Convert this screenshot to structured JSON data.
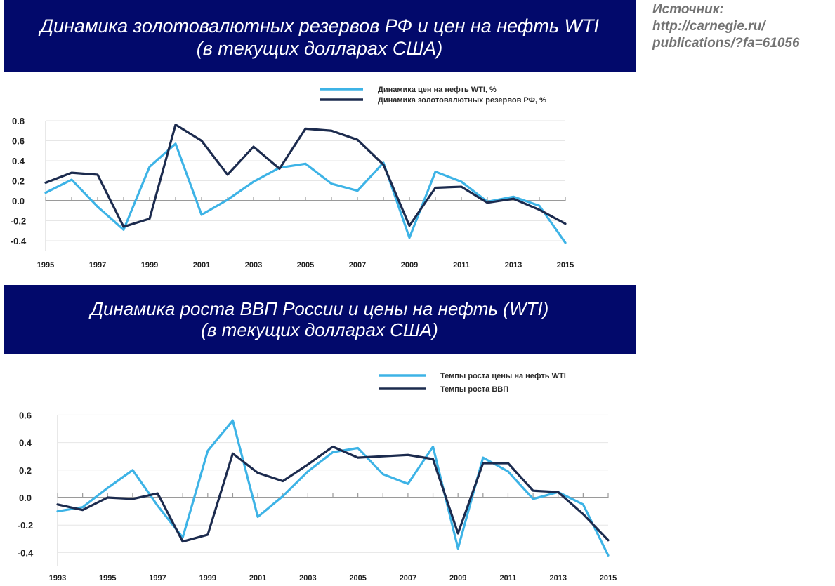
{
  "header": {
    "chart1_title_line1": "Динамика золотовалютных резервов РФ и цен на нефть WTI",
    "chart1_title_line2": "(в текущих долларах США)",
    "chart2_title_line1": "Динамика роста ВВП России и цены на нефть (WTI)",
    "chart2_title_line2": "(в текущих долларах США)"
  },
  "source": {
    "label": "Источник:",
    "url_line1": "http://carnegie.ru/",
    "url_line2": "publications/?fa=61056"
  },
  "colors": {
    "banner": "#02096b",
    "oil_series": "#3db3e6",
    "second_series": "#1c2b4e",
    "zero_line": "#9a9a9a",
    "grid": "#e6e6e6"
  },
  "chart_data": [
    {
      "type": "line",
      "title": "Динамика золотовалютных резервов РФ и цен на нефть WTI (в текущих долларах США)",
      "x": [
        1995,
        1996,
        1997,
        1998,
        1999,
        2000,
        2001,
        2002,
        2003,
        2004,
        2005,
        2006,
        2007,
        2008,
        2009,
        2010,
        2011,
        2012,
        2013,
        2014,
        2015
      ],
      "x_tick_labels": [
        "1995",
        "1997",
        "1999",
        "2001",
        "2003",
        "2005",
        "2007",
        "2009",
        "2011",
        "2013",
        "2015"
      ],
      "y_tick_labels": [
        "0.8",
        "0.6",
        "0.4",
        "0.2",
        "0.0",
        "-0.2",
        "-0.4"
      ],
      "ylim": [
        -0.5,
        0.8
      ],
      "xlim": [
        1995,
        2015
      ],
      "legend_position": "top-right",
      "series": [
        {
          "name": "Динамика цен на нефть WTI, %",
          "color": "#3db3e6",
          "values": [
            0.08,
            0.21,
            -0.06,
            -0.29,
            0.34,
            0.57,
            -0.14,
            0.01,
            0.19,
            0.33,
            0.37,
            0.17,
            0.1,
            0.38,
            -0.37,
            0.29,
            0.19,
            -0.01,
            0.04,
            -0.05,
            -0.42
          ]
        },
        {
          "name": "Динамика золотовалютных резервов РФ, %",
          "color": "#1c2b4e",
          "values": [
            0.18,
            0.28,
            0.26,
            -0.26,
            -0.18,
            0.76,
            0.6,
            0.26,
            0.54,
            0.32,
            0.72,
            0.7,
            0.61,
            0.36,
            -0.25,
            0.13,
            0.14,
            -0.02,
            0.02,
            -0.09,
            -0.23
          ]
        }
      ]
    },
    {
      "type": "line",
      "title": "Динамика роста ВВП России и цены на нефть (WTI) (в текущих долларах США)",
      "x": [
        1993,
        1994,
        1995,
        1996,
        1997,
        1998,
        1999,
        2000,
        2001,
        2002,
        2003,
        2004,
        2005,
        2006,
        2007,
        2008,
        2009,
        2010,
        2011,
        2012,
        2013,
        2014,
        2015
      ],
      "x_tick_labels": [
        "1993",
        "1995",
        "1997",
        "1999",
        "2001",
        "2003",
        "2005",
        "2007",
        "2009",
        "2011",
        "2013",
        "2015"
      ],
      "y_tick_labels": [
        "0.6",
        "0.4",
        "0.2",
        "0.0",
        "-0.2",
        "-0.4"
      ],
      "ylim": [
        -0.5,
        0.6
      ],
      "xlim": [
        1993,
        2015
      ],
      "legend_position": "top-right",
      "series": [
        {
          "name": "Темпы роста цены на нефть WTI",
          "color": "#3db3e6",
          "values": [
            -0.1,
            -0.07,
            0.07,
            0.2,
            -0.06,
            -0.29,
            0.34,
            0.56,
            -0.14,
            0.01,
            0.19,
            0.33,
            0.36,
            0.17,
            0.1,
            0.37,
            -0.37,
            0.29,
            0.19,
            -0.01,
            0.04,
            -0.05,
            -0.42
          ]
        },
        {
          "name": "Темпы роста ВВП",
          "color": "#1c2b4e",
          "values": [
            -0.05,
            -0.09,
            0.0,
            -0.01,
            0.03,
            -0.32,
            -0.27,
            0.32,
            0.18,
            0.12,
            0.24,
            0.37,
            0.29,
            0.3,
            0.31,
            0.28,
            -0.26,
            0.25,
            0.25,
            0.05,
            0.04,
            -0.12,
            -0.31
          ]
        }
      ]
    }
  ]
}
